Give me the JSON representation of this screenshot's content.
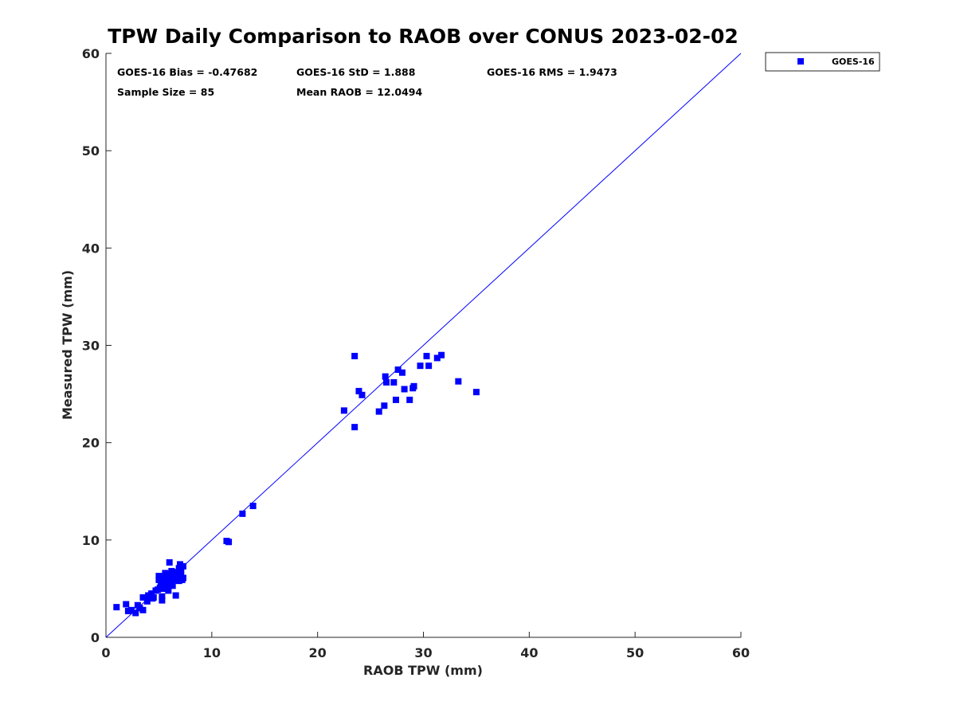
{
  "chart_data": {
    "type": "scatter",
    "title": "TPW Daily Comparison to RAOB over CONUS 2023-02-02",
    "xlabel": "RAOB TPW (mm)",
    "ylabel": "Measured TPW (mm)",
    "xlim": [
      0,
      60
    ],
    "ylim": [
      0,
      60
    ],
    "xticks": [
      "0",
      "10",
      "20",
      "30",
      "40",
      "50",
      "60"
    ],
    "yticks": [
      "0",
      "10",
      "20",
      "30",
      "40",
      "50",
      "60"
    ],
    "grid": false,
    "legend_position": "outside-top-right",
    "reference_line": {
      "x": [
        0,
        60
      ],
      "y": [
        0,
        60
      ],
      "color": "#0000ff"
    },
    "annotations": [
      "GOES-16 Bias = -0.47682",
      "GOES-16 StD = 1.888",
      "GOES-16 RMS = 1.9473",
      "Sample Size = 85",
      "Mean RAOB = 12.0494"
    ],
    "series": [
      {
        "name": "GOES-16",
        "color": "#0000ff",
        "marker": "square",
        "points": [
          [
            1.0,
            3.1
          ],
          [
            1.9,
            3.4
          ],
          [
            2.1,
            2.7
          ],
          [
            2.4,
            2.8
          ],
          [
            2.8,
            2.5
          ],
          [
            3.0,
            3.3
          ],
          [
            3.2,
            3.0
          ],
          [
            3.5,
            2.8
          ],
          [
            3.5,
            4.1
          ],
          [
            3.9,
            3.7
          ],
          [
            4.0,
            4.3
          ],
          [
            4.3,
            4.5
          ],
          [
            4.5,
            4.1
          ],
          [
            4.7,
            4.8
          ],
          [
            5.0,
            6.3
          ],
          [
            5.1,
            5.1
          ],
          [
            5.2,
            5.6
          ],
          [
            5.3,
            4.2
          ],
          [
            5.3,
            3.8
          ],
          [
            5.4,
            6.0
          ],
          [
            5.5,
            5.3
          ],
          [
            5.6,
            5.0
          ],
          [
            5.7,
            6.2
          ],
          [
            5.8,
            5.5
          ],
          [
            5.9,
            6.5
          ],
          [
            5.9,
            4.8
          ],
          [
            6.0,
            7.7
          ],
          [
            6.1,
            6.3
          ],
          [
            6.2,
            5.9
          ],
          [
            6.3,
            5.3
          ],
          [
            6.4,
            6.5
          ],
          [
            6.5,
            6.0
          ],
          [
            6.6,
            4.3
          ],
          [
            6.7,
            6.2
          ],
          [
            6.8,
            6.4
          ],
          [
            6.9,
            5.8
          ],
          [
            7.0,
            7.5
          ],
          [
            7.1,
            6.7
          ],
          [
            7.2,
            6.1
          ],
          [
            7.3,
            7.3
          ],
          [
            5.0,
            5.9
          ],
          [
            5.6,
            6.6
          ],
          [
            6.2,
            6.8
          ],
          [
            6.9,
            7.1
          ],
          [
            4.9,
            4.9
          ],
          [
            5.8,
            5.7
          ],
          [
            6.4,
            5.9
          ],
          [
            7.2,
            5.9
          ],
          [
            6.6,
            6.7
          ],
          [
            5.4,
            5.0
          ],
          [
            11.4,
            9.9
          ],
          [
            11.6,
            9.8
          ],
          [
            12.9,
            12.7
          ],
          [
            13.9,
            13.5
          ],
          [
            22.5,
            23.3
          ],
          [
            23.5,
            28.9
          ],
          [
            23.5,
            21.6
          ],
          [
            23.9,
            25.3
          ],
          [
            24.2,
            24.9
          ],
          [
            25.8,
            23.2
          ],
          [
            26.3,
            23.8
          ],
          [
            26.4,
            26.8
          ],
          [
            26.5,
            26.2
          ],
          [
            27.2,
            26.2
          ],
          [
            27.4,
            24.4
          ],
          [
            27.6,
            27.5
          ],
          [
            28.0,
            27.2
          ],
          [
            28.2,
            25.5
          ],
          [
            28.7,
            24.4
          ],
          [
            29.0,
            25.6
          ],
          [
            29.1,
            25.8
          ],
          [
            29.7,
            27.9
          ],
          [
            30.3,
            28.9
          ],
          [
            30.5,
            27.9
          ],
          [
            31.3,
            28.7
          ],
          [
            31.7,
            29.0
          ],
          [
            33.3,
            26.3
          ],
          [
            35.0,
            25.2
          ],
          [
            4.4,
            4.0
          ],
          [
            6.1,
            6.0
          ],
          [
            6.9,
            6.2
          ],
          [
            5.2,
            5.4
          ],
          [
            7.3,
            6.1
          ],
          [
            6.5,
            6.6
          ],
          [
            5.7,
            5.2
          ]
        ]
      }
    ]
  }
}
